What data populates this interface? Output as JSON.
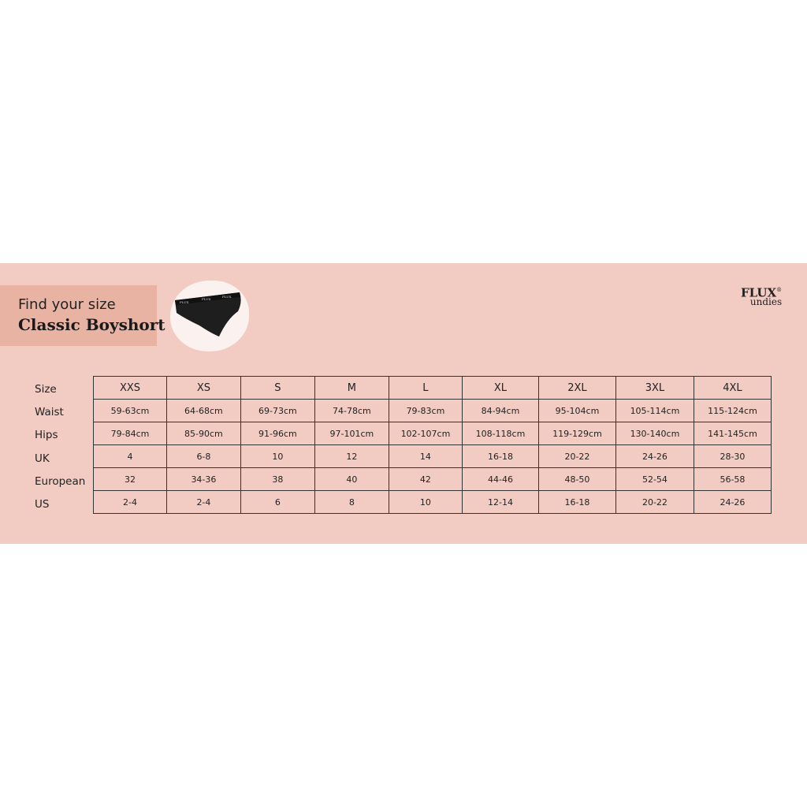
{
  "header": {
    "line1": "Find your size",
    "line2": "Classic Boyshort"
  },
  "brand": {
    "name": "FLUX",
    "reg": "®",
    "sub": "undies",
    "product_waistband_text": "FLUX"
  },
  "colors": {
    "band": "#f2ccc2",
    "title_box": "#e9b3a4",
    "product": "#1e1e1e"
  },
  "table": {
    "row_labels": [
      "Size",
      "Waist",
      "Hips",
      "UK",
      "European",
      "US"
    ],
    "rows": [
      [
        "XXS",
        "XS",
        "S",
        "M",
        "L",
        "XL",
        "2XL",
        "3XL",
        "4XL"
      ],
      [
        "59-63cm",
        "64-68cm",
        "69-73cm",
        "74-78cm",
        "79-83cm",
        "84-94cm",
        "95-104cm",
        "105-114cm",
        "115-124cm"
      ],
      [
        "79-84cm",
        "85-90cm",
        "91-96cm",
        "97-101cm",
        "102-107cm",
        "108-118cm",
        "119-129cm",
        "130-140cm",
        "141-145cm"
      ],
      [
        "4",
        "6-8",
        "10",
        "12",
        "14",
        "16-18",
        "20-22",
        "24-26",
        "28-30"
      ],
      [
        "32",
        "34-36",
        "38",
        "40",
        "42",
        "44-46",
        "48-50",
        "52-54",
        "56-58"
      ],
      [
        "2-4",
        "2-4",
        "6",
        "8",
        "10",
        "12-14",
        "16-18",
        "20-22",
        "24-26"
      ]
    ]
  }
}
